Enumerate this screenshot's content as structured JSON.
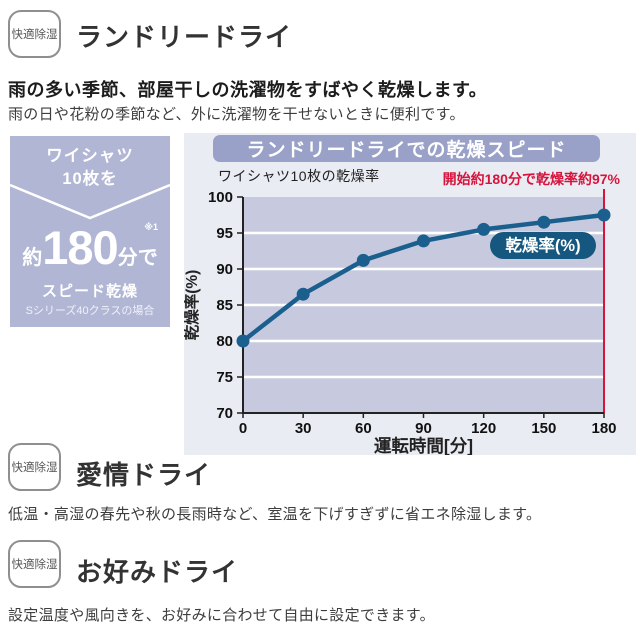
{
  "colors": {
    "accent_lavender": "#b2b6d5",
    "chart_panel_bg": "#eaecf4",
    "chart_header_bg": "#9aa1c8",
    "plot_bg": "#c7cade",
    "grid_white": "#ffffff",
    "series_blue": "#1b5f8e",
    "legend_bg": "#15577f",
    "alert_red": "#d6143c",
    "axis_dark": "#222222"
  },
  "sections": [
    {
      "badge": "快適除湿",
      "title": "ランドリードライ",
      "lead_bold": "雨の多い季節、部屋干しの洗濯物をすばやく乾燥します。",
      "lead": "雨の日や花粉の季節など、外に洗濯物を干せないときに便利です。"
    },
    {
      "badge": "快適除湿",
      "title": "愛情ドライ",
      "lead": "低温・高湿の春先や秋の長雨時など、室温を下げすぎずに省エネ除湿します。"
    },
    {
      "badge": "快適除湿",
      "title": "お好みドライ",
      "lead": "設定温度や風向きを、お好みに合わせて自由に設定できます。"
    }
  ],
  "highlight_box": {
    "line1": "ワイシャツ",
    "line2": "10枚を",
    "approx_prefix": "約",
    "big_number": "180",
    "unit_suffix": "分で",
    "footnote_mark": "※1",
    "result_label": "スピード乾燥",
    "model_note": "Sシリーズ40クラスの場合"
  },
  "chart_data": {
    "type": "line",
    "title": "ランドリードライでの乾燥スピード",
    "subtitle": "ワイシャツ10枚の乾燥率",
    "annotation": "開始約180分で乾燥率約97%",
    "xlabel": "運転時間[分]",
    "ylabel": "乾燥率(%)",
    "legend": "乾燥率(%)",
    "legend_position": "inside-right",
    "x": [
      0,
      30,
      60,
      90,
      120,
      150,
      180
    ],
    "values": [
      80,
      86.5,
      91.2,
      93.9,
      95.5,
      96.5,
      97.5
    ],
    "xlim": [
      0,
      180
    ],
    "ylim": [
      70,
      100
    ],
    "xticks": [
      0,
      30,
      60,
      90,
      120,
      150,
      180
    ],
    "yticks": [
      70,
      75,
      80,
      85,
      90,
      95,
      100
    ],
    "grid": "horizontal-white",
    "annotated_x": 180
  }
}
